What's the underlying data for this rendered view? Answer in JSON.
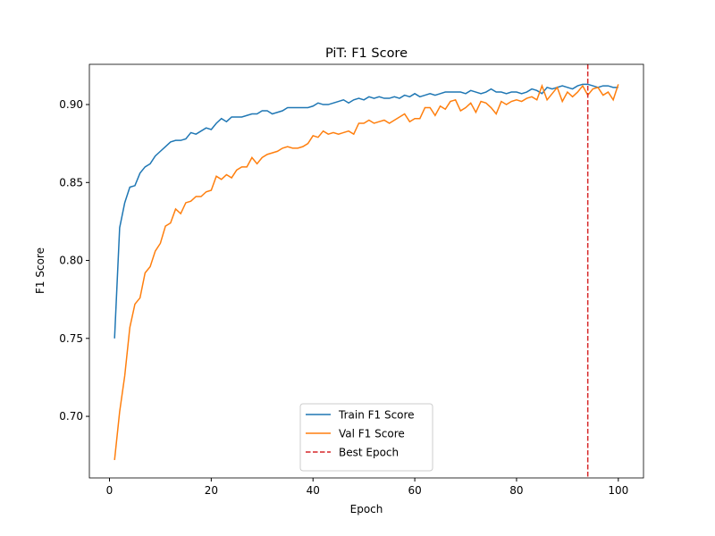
{
  "chart_data": {
    "type": "line",
    "title": "PiT: F1 Score",
    "xlabel": "Epoch",
    "ylabel": "F1 Score",
    "x": [
      1,
      2,
      3,
      4,
      5,
      6,
      7,
      8,
      9,
      10,
      11,
      12,
      13,
      14,
      15,
      16,
      17,
      18,
      19,
      20,
      21,
      22,
      23,
      24,
      25,
      26,
      27,
      28,
      29,
      30,
      31,
      32,
      33,
      34,
      35,
      36,
      37,
      38,
      39,
      40,
      41,
      42,
      43,
      44,
      45,
      46,
      47,
      48,
      49,
      50,
      51,
      52,
      53,
      54,
      55,
      56,
      57,
      58,
      59,
      60,
      61,
      62,
      63,
      64,
      65,
      66,
      67,
      68,
      69,
      70,
      71,
      72,
      73,
      74,
      75,
      76,
      77,
      78,
      79,
      80,
      81,
      82,
      83,
      84,
      85,
      86,
      87,
      88,
      89,
      90,
      91,
      92,
      93,
      94,
      95,
      96,
      97,
      98,
      99,
      100
    ],
    "series": [
      {
        "name": "Train F1 Score",
        "color": "#1f77b4",
        "values": [
          0.75,
          0.821,
          0.837,
          0.847,
          0.848,
          0.856,
          0.86,
          0.862,
          0.867,
          0.87,
          0.873,
          0.876,
          0.877,
          0.877,
          0.878,
          0.882,
          0.881,
          0.883,
          0.885,
          0.884,
          0.888,
          0.891,
          0.889,
          0.892,
          0.892,
          0.892,
          0.893,
          0.894,
          0.894,
          0.896,
          0.896,
          0.894,
          0.895,
          0.896,
          0.898,
          0.898,
          0.898,
          0.898,
          0.898,
          0.899,
          0.901,
          0.9,
          0.9,
          0.901,
          0.902,
          0.903,
          0.901,
          0.903,
          0.904,
          0.903,
          0.905,
          0.904,
          0.905,
          0.904,
          0.904,
          0.905,
          0.904,
          0.906,
          0.905,
          0.907,
          0.905,
          0.906,
          0.907,
          0.906,
          0.907,
          0.908,
          0.908,
          0.908,
          0.908,
          0.907,
          0.909,
          0.908,
          0.907,
          0.908,
          0.91,
          0.908,
          0.908,
          0.907,
          0.908,
          0.908,
          0.907,
          0.908,
          0.91,
          0.909,
          0.907,
          0.911,
          0.91,
          0.911,
          0.912,
          0.911,
          0.91,
          0.912,
          0.913,
          0.913,
          0.912,
          0.911,
          0.912,
          0.912,
          0.911,
          0.911
        ]
      },
      {
        "name": "Val F1 Score",
        "color": "#ff7f0e",
        "values": [
          0.672,
          0.703,
          0.726,
          0.757,
          0.772,
          0.776,
          0.792,
          0.796,
          0.806,
          0.811,
          0.822,
          0.824,
          0.833,
          0.83,
          0.837,
          0.838,
          0.841,
          0.841,
          0.844,
          0.845,
          0.854,
          0.852,
          0.855,
          0.853,
          0.858,
          0.86,
          0.86,
          0.866,
          0.862,
          0.866,
          0.868,
          0.869,
          0.87,
          0.872,
          0.873,
          0.872,
          0.872,
          0.873,
          0.875,
          0.88,
          0.879,
          0.883,
          0.881,
          0.882,
          0.881,
          0.882,
          0.883,
          0.881,
          0.888,
          0.888,
          0.89,
          0.888,
          0.889,
          0.89,
          0.888,
          0.89,
          0.892,
          0.894,
          0.889,
          0.891,
          0.891,
          0.898,
          0.898,
          0.893,
          0.899,
          0.897,
          0.902,
          0.903,
          0.896,
          0.898,
          0.901,
          0.895,
          0.902,
          0.901,
          0.898,
          0.894,
          0.902,
          0.9,
          0.902,
          0.903,
          0.902,
          0.904,
          0.905,
          0.903,
          0.912,
          0.903,
          0.907,
          0.911,
          0.902,
          0.908,
          0.905,
          0.908,
          0.912,
          0.906,
          0.91,
          0.911,
          0.906,
          0.908,
          0.903,
          0.913
        ]
      }
    ],
    "vlines": [
      {
        "name": "Best Epoch",
        "x": 94,
        "color": "#d62728"
      }
    ],
    "xlim": [
      -3.95,
      104.95
    ],
    "xticks": [
      0,
      20,
      40,
      60,
      80,
      100
    ],
    "ylim": [
      0.6605,
      0.9258
    ],
    "yticks": [
      {
        "value": 0.7,
        "label": "0.70"
      },
      {
        "value": 0.75,
        "label": "0.75"
      },
      {
        "value": 0.8,
        "label": "0.80"
      },
      {
        "value": 0.85,
        "label": "0.85"
      },
      {
        "value": 0.9,
        "label": "0.90"
      }
    ],
    "legend": "lower center",
    "grid": false
  }
}
